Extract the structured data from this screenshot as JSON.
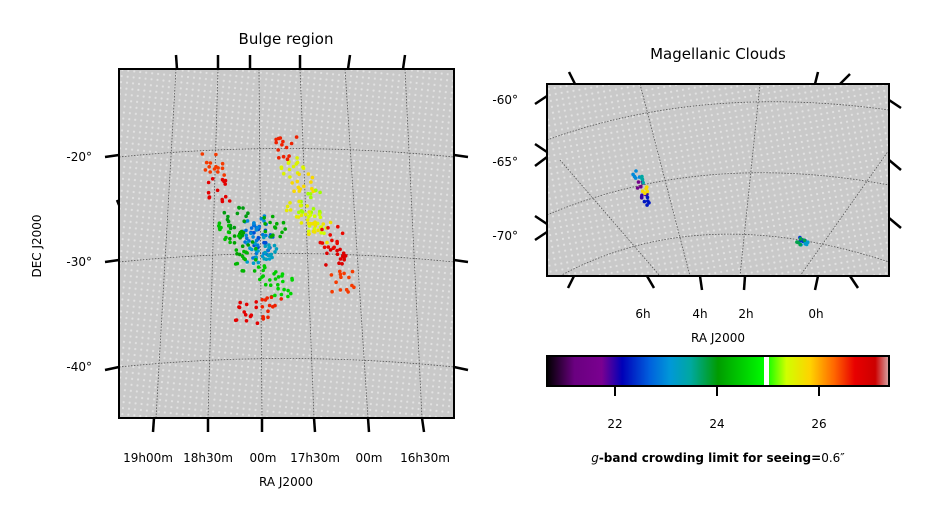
{
  "chart_data": [
    {
      "type": "scatter",
      "title": "Bulge region",
      "xlabel": "RA J2000",
      "ylabel": "DEC J2000",
      "xticks": [
        "19h00m",
        "18h30m",
        "00m",
        "17h30m",
        "00m",
        "16h30m"
      ],
      "yticks": [
        "-20°",
        "-30°",
        "-40°"
      ],
      "xlim_hours": [
        19.25,
        16.25
      ],
      "ylim": [
        -45,
        -12
      ],
      "grid": true,
      "background_field": "grey tiles",
      "series": [
        {
          "x": [
            18.02,
            17.98,
            18.05,
            17.95,
            18.0,
            17.93
          ],
          "y": [
            -27.5,
            -28.2,
            -26.8,
            -28.8,
            -29.5,
            -29.0
          ],
          "value": [
            22.8,
            22.6,
            23.0,
            22.9,
            23.2,
            23.3
          ]
        },
        {
          "x": [
            18.2,
            18.1,
            17.9,
            17.85,
            18.15,
            17.8,
            18.25
          ],
          "y": [
            -26.0,
            -30.0,
            -31.5,
            -27.0,
            -28.5,
            -32.5,
            -27.5
          ],
          "value": [
            24.0,
            24.3,
            24.5,
            24.2,
            24.1,
            24.6,
            24.4
          ]
        },
        {
          "x": [
            17.7,
            17.6,
            17.55,
            17.65,
            17.5,
            17.45
          ],
          "y": [
            -21.5,
            -23.0,
            -24.5,
            -25.5,
            -26.5,
            -27.5
          ],
          "value": [
            25.5,
            25.8,
            25.3,
            25.6,
            25.4,
            25.7
          ]
        },
        {
          "x": [
            18.4,
            18.35,
            17.75,
            17.35,
            17.3,
            17.25,
            17.9,
            18.1
          ],
          "y": [
            -21.0,
            -23.5,
            -19.5,
            -28.0,
            -30.0,
            -32.0,
            -34.5,
            -35.0
          ],
          "value": [
            26.5,
            26.8,
            26.6,
            26.7,
            26.9,
            26.5,
            26.6,
            26.8
          ]
        }
      ]
    },
    {
      "type": "scatter",
      "title": "Magellanic Clouds",
      "xlabel": "RA J2000",
      "ylabel": "",
      "xticks": [
        "6h",
        "4h",
        "2h",
        "0h"
      ],
      "yticks": [
        "-60°",
        "-65°",
        "-70°"
      ],
      "grid": true,
      "background_field": "grey tiles",
      "series": [
        {
          "x": [
            5.4,
            5.3,
            5.2,
            5.5,
            5.35,
            5.25
          ],
          "y": [
            -67.5,
            -68.5,
            -69.0,
            -66.5,
            -67.0,
            -68.0
          ],
          "value": [
            21.5,
            22.0,
            22.3,
            23.0,
            23.5,
            25.8
          ]
        },
        {
          "x": [
            0.9,
            0.85,
            0.95
          ],
          "y": [
            -72.5,
            -73.0,
            -72.8
          ],
          "value": [
            22.5,
            23.2,
            23.8
          ]
        }
      ]
    }
  ],
  "colorbar": {
    "ticks": [
      "22",
      "24",
      "26"
    ],
    "range": [
      20.7,
      27.4
    ],
    "tick_values": [
      22,
      24,
      26
    ],
    "cmap": "nipy_spectral"
  },
  "colorbar_label": "g-band crowding limit for seeing=0.6″",
  "colorbar_label_parts": {
    "italic": "g",
    "bold": "-band crowding limit for seeing=",
    "value": "0.6″"
  },
  "colors": {
    "background_grey": "#c8c8c8",
    "grid": "#555555"
  }
}
